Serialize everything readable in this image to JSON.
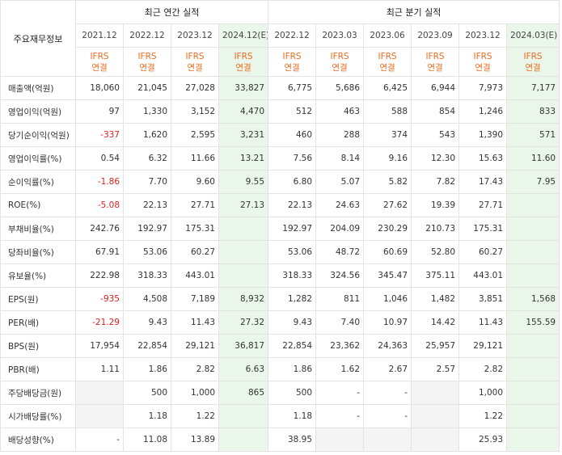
{
  "header": {
    "row_label": "주요재무정보",
    "annual_title": "최근 연간 실적",
    "quarter_title": "최근 분기 실적",
    "annual_periods": [
      "2021.12",
      "2022.12",
      "2023.12",
      "2024.12(E)"
    ],
    "quarter_periods": [
      "2022.12",
      "2023.03",
      "2023.06",
      "2023.09",
      "2023.12",
      "2024.03(E)"
    ],
    "standard_top": "IFRS",
    "standard_bottom": "연결"
  },
  "rows": [
    {
      "label": "매출액(억원)",
      "annual": [
        "18,060",
        "21,045",
        "27,028",
        "33,827"
      ],
      "quarter": [
        "6,775",
        "5,686",
        "6,425",
        "6,944",
        "7,973",
        "7,177"
      ]
    },
    {
      "label": "영업이익(억원)",
      "annual": [
        "97",
        "1,330",
        "3,152",
        "4,470"
      ],
      "quarter": [
        "512",
        "463",
        "588",
        "854",
        "1,246",
        "833"
      ]
    },
    {
      "label": "당기순이익(억원)",
      "annual": [
        "-337",
        "1,620",
        "2,595",
        "3,231"
      ],
      "quarter": [
        "460",
        "288",
        "374",
        "543",
        "1,390",
        "571"
      ]
    },
    {
      "label": "영업이익률(%)",
      "annual": [
        "0.54",
        "6.32",
        "11.66",
        "13.21"
      ],
      "quarter": [
        "7.56",
        "8.14",
        "9.16",
        "12.30",
        "15.63",
        "11.60"
      ]
    },
    {
      "label": "순이익률(%)",
      "annual": [
        "-1.86",
        "7.70",
        "9.60",
        "9.55"
      ],
      "quarter": [
        "6.80",
        "5.07",
        "5.82",
        "7.82",
        "17.43",
        "7.95"
      ]
    },
    {
      "label": "ROE(%)",
      "annual": [
        "-5.08",
        "22.13",
        "27.71",
        "27.13"
      ],
      "quarter": [
        "22.13",
        "24.63",
        "27.62",
        "19.39",
        "27.71",
        ""
      ]
    },
    {
      "label": "부채비율(%)",
      "annual": [
        "242.76",
        "192.97",
        "175.31",
        ""
      ],
      "quarter": [
        "192.97",
        "204.09",
        "230.29",
        "210.73",
        "175.31",
        ""
      ]
    },
    {
      "label": "당좌비율(%)",
      "annual": [
        "67.91",
        "53.06",
        "60.27",
        ""
      ],
      "quarter": [
        "53.06",
        "48.72",
        "60.69",
        "52.80",
        "60.27",
        ""
      ]
    },
    {
      "label": "유보율(%)",
      "annual": [
        "222.98",
        "318.33",
        "443.01",
        ""
      ],
      "quarter": [
        "318.33",
        "324.56",
        "345.47",
        "375.11",
        "443.01",
        ""
      ]
    },
    {
      "label": "EPS(원)",
      "annual": [
        "-935",
        "4,508",
        "7,189",
        "8,932"
      ],
      "quarter": [
        "1,282",
        "811",
        "1,046",
        "1,482",
        "3,851",
        "1,568"
      ]
    },
    {
      "label": "PER(배)",
      "annual": [
        "-21.29",
        "9.43",
        "11.43",
        "27.32"
      ],
      "quarter": [
        "9.43",
        "7.40",
        "10.97",
        "14.42",
        "11.43",
        "155.59"
      ]
    },
    {
      "label": "BPS(원)",
      "annual": [
        "17,954",
        "22,854",
        "29,121",
        "36,817"
      ],
      "quarter": [
        "22,854",
        "23,362",
        "24,363",
        "25,957",
        "29,121",
        ""
      ]
    },
    {
      "label": "PBR(배)",
      "annual": [
        "1.11",
        "1.86",
        "2.82",
        "6.63"
      ],
      "quarter": [
        "1.86",
        "1.62",
        "2.67",
        "2.57",
        "2.82",
        ""
      ]
    },
    {
      "label": "주당배당금(원)",
      "annual": [
        "",
        "500",
        "1,000",
        "865"
      ],
      "quarter": [
        "500",
        "-",
        "-",
        "",
        "1,000",
        ""
      ]
    },
    {
      "label": "시가배당률(%)",
      "annual": [
        "",
        "1.18",
        "1.22",
        ""
      ],
      "quarter": [
        "1.18",
        "-",
        "-",
        "",
        "1.22",
        ""
      ]
    },
    {
      "label": "배당성향(%)",
      "annual": [
        "-",
        "11.08",
        "13.89",
        ""
      ],
      "quarter": [
        "38.95",
        "",
        "",
        "",
        "25.93",
        ""
      ]
    }
  ],
  "colors": {
    "negative": "#e02020",
    "ifrs_label": "#ee6b1e",
    "estimate_bg": "#eaf6ea",
    "empty_bg": "#f4f4f4"
  }
}
